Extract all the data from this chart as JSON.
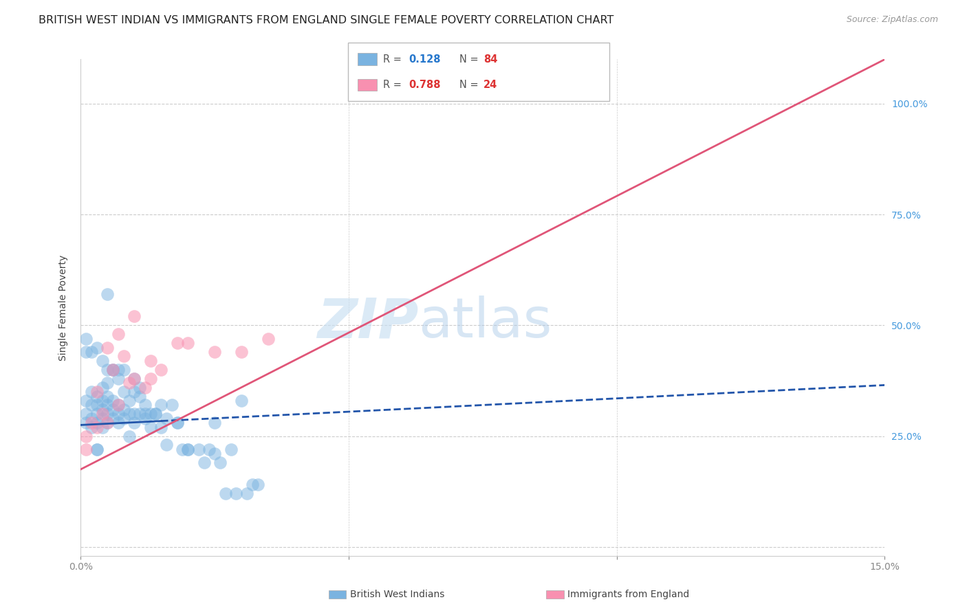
{
  "title": "BRITISH WEST INDIAN VS IMMIGRANTS FROM ENGLAND SINGLE FEMALE POVERTY CORRELATION CHART",
  "source": "Source: ZipAtlas.com",
  "ylabel": "Single Female Poverty",
  "watermark_zip": "ZIP",
  "watermark_atlas": "atlas",
  "blue_R": "0.128",
  "blue_N": "84",
  "pink_R": "0.788",
  "pink_N": "24",
  "blue_color": "#7ab3e0",
  "pink_color": "#f890b0",
  "blue_R_color": "#2677cc",
  "blue_N_color": "#dd3333",
  "pink_R_color": "#dd3333",
  "pink_N_color": "#dd3333",
  "blue_line_color": "#2255aa",
  "pink_line_color": "#e05578",
  "blue_scatter_x": [
    0.001,
    0.001,
    0.001,
    0.002,
    0.002,
    0.002,
    0.002,
    0.003,
    0.003,
    0.003,
    0.003,
    0.003,
    0.004,
    0.004,
    0.004,
    0.004,
    0.004,
    0.005,
    0.005,
    0.005,
    0.005,
    0.005,
    0.006,
    0.006,
    0.006,
    0.006,
    0.007,
    0.007,
    0.007,
    0.007,
    0.008,
    0.008,
    0.008,
    0.009,
    0.009,
    0.01,
    0.01,
    0.01,
    0.011,
    0.011,
    0.012,
    0.012,
    0.013,
    0.013,
    0.014,
    0.015,
    0.015,
    0.016,
    0.017,
    0.018,
    0.019,
    0.02,
    0.022,
    0.024,
    0.025,
    0.026,
    0.028,
    0.03,
    0.032,
    0.001,
    0.001,
    0.002,
    0.003,
    0.003,
    0.004,
    0.005,
    0.005,
    0.006,
    0.007,
    0.008,
    0.009,
    0.01,
    0.011,
    0.012,
    0.014,
    0.016,
    0.018,
    0.02,
    0.023,
    0.025,
    0.027,
    0.029,
    0.031,
    0.033
  ],
  "blue_scatter_y": [
    0.28,
    0.3,
    0.33,
    0.27,
    0.29,
    0.32,
    0.35,
    0.28,
    0.3,
    0.32,
    0.34,
    0.22,
    0.27,
    0.29,
    0.31,
    0.33,
    0.36,
    0.28,
    0.3,
    0.32,
    0.34,
    0.37,
    0.29,
    0.31,
    0.33,
    0.4,
    0.28,
    0.3,
    0.32,
    0.38,
    0.29,
    0.31,
    0.35,
    0.3,
    0.33,
    0.28,
    0.3,
    0.35,
    0.3,
    0.34,
    0.29,
    0.32,
    0.27,
    0.3,
    0.3,
    0.27,
    0.32,
    0.23,
    0.32,
    0.28,
    0.22,
    0.22,
    0.22,
    0.22,
    0.28,
    0.19,
    0.22,
    0.33,
    0.14,
    0.47,
    0.44,
    0.44,
    0.45,
    0.22,
    0.42,
    0.4,
    0.57,
    0.4,
    0.4,
    0.4,
    0.25,
    0.38,
    0.36,
    0.3,
    0.3,
    0.29,
    0.28,
    0.22,
    0.19,
    0.21,
    0.12,
    0.12,
    0.12,
    0.14
  ],
  "pink_scatter_x": [
    0.001,
    0.001,
    0.002,
    0.003,
    0.004,
    0.005,
    0.006,
    0.007,
    0.008,
    0.009,
    0.01,
    0.012,
    0.013,
    0.015,
    0.018,
    0.02,
    0.025,
    0.03,
    0.035,
    0.003,
    0.005,
    0.007,
    0.01,
    0.013
  ],
  "pink_scatter_y": [
    0.22,
    0.25,
    0.28,
    0.27,
    0.3,
    0.28,
    0.4,
    0.32,
    0.43,
    0.37,
    0.38,
    0.36,
    0.38,
    0.4,
    0.46,
    0.46,
    0.44,
    0.44,
    0.47,
    0.35,
    0.45,
    0.48,
    0.52,
    0.42
  ],
  "blue_line_x0": 0.0,
  "blue_line_x_solid_end": 0.015,
  "blue_line_x1": 0.15,
  "blue_line_y0": 0.275,
  "blue_line_y1": 0.365,
  "pink_line_x0": 0.0,
  "pink_line_x1": 0.15,
  "pink_line_y0": 0.175,
  "pink_line_y1": 1.1,
  "xlim": [
    0.0,
    0.15
  ],
  "ylim": [
    -0.02,
    1.1
  ],
  "y_ticks": [
    0.0,
    0.25,
    0.5,
    0.75,
    1.0
  ],
  "y_tick_labels_right": [
    "",
    "25.0%",
    "50.0%",
    "75.0%",
    "100.0%"
  ],
  "x_tick_positions": [
    0.0,
    0.05,
    0.1,
    0.15
  ],
  "x_tick_labels": [
    "0.0%",
    "",
    "",
    "15.0%"
  ],
  "background_color": "#ffffff",
  "grid_color": "#cccccc",
  "title_fontsize": 11.5,
  "source_fontsize": 9,
  "tick_fontsize": 10,
  "axis_label_fontsize": 10
}
